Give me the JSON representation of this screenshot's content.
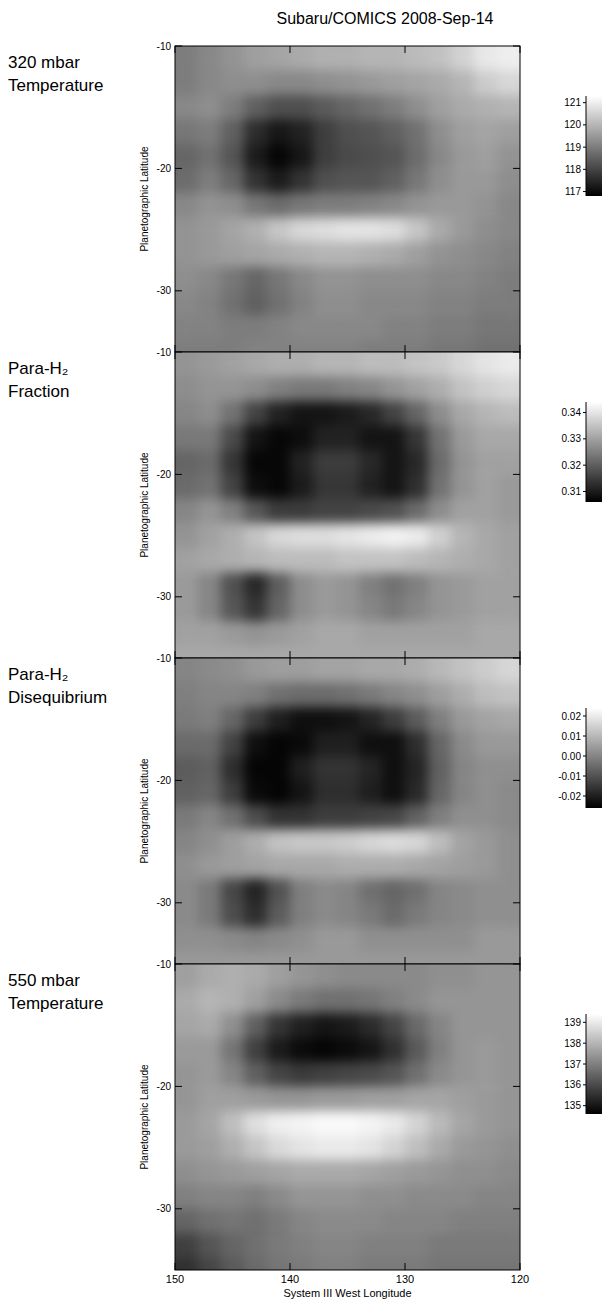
{
  "title": "Subaru/COMICS 2008-Sep-14",
  "chart_data": [
    {
      "type": "heatmap",
      "title": "320 mbar Temperature",
      "y_label": "Planetographic Latitude",
      "x": [
        149,
        147,
        145,
        143,
        141,
        139,
        137,
        135,
        133,
        131,
        129,
        127,
        125,
        123,
        121
      ],
      "y": [
        -11,
        -13,
        -15,
        -17,
        -19,
        -21,
        -23,
        -25,
        -27,
        -29,
        -31,
        -33,
        -35
      ],
      "values": [
        [
          119.0,
          119.2,
          119.4,
          119.6,
          119.7,
          119.8,
          119.9,
          119.9,
          120.0,
          120.0,
          120.1,
          120.2,
          120.5,
          120.9,
          121.0
        ],
        [
          119.0,
          119.2,
          119.3,
          119.3,
          119.2,
          119.2,
          119.3,
          119.4,
          119.5,
          119.6,
          119.7,
          119.8,
          120.0,
          120.4,
          120.6
        ],
        [
          119.2,
          119.3,
          119.0,
          118.5,
          118.2,
          118.2,
          118.4,
          118.6,
          118.8,
          119.0,
          119.3,
          119.6,
          119.8,
          119.9,
          120.0
        ],
        [
          118.9,
          119.0,
          118.5,
          117.6,
          117.2,
          117.4,
          117.9,
          118.2,
          118.3,
          118.5,
          118.8,
          119.3,
          119.6,
          119.7,
          119.6
        ],
        [
          118.6,
          118.8,
          118.3,
          117.3,
          116.9,
          117.2,
          117.9,
          118.1,
          118.2,
          118.3,
          118.7,
          119.2,
          119.5,
          119.6,
          119.4
        ],
        [
          118.7,
          119.0,
          118.6,
          117.7,
          117.3,
          117.7,
          118.2,
          118.3,
          118.3,
          118.5,
          118.9,
          119.3,
          119.5,
          119.5,
          119.3
        ],
        [
          119.2,
          119.4,
          119.3,
          118.9,
          118.7,
          118.9,
          119.0,
          119.0,
          119.1,
          119.2,
          119.4,
          119.5,
          119.5,
          119.4,
          119.2
        ],
        [
          119.4,
          119.5,
          119.7,
          119.9,
          120.3,
          120.6,
          120.7,
          120.8,
          120.8,
          120.7,
          120.3,
          119.8,
          119.5,
          119.3,
          119.2
        ],
        [
          119.4,
          119.5,
          119.6,
          119.7,
          119.8,
          119.9,
          120.0,
          120.0,
          119.9,
          119.8,
          119.6,
          119.4,
          119.3,
          119.2,
          119.1
        ],
        [
          119.3,
          119.2,
          118.9,
          118.6,
          118.9,
          119.2,
          119.4,
          119.4,
          119.3,
          119.3,
          119.3,
          119.2,
          119.2,
          119.1,
          119.0
        ],
        [
          119.2,
          119.1,
          118.8,
          118.5,
          118.8,
          119.1,
          119.3,
          119.3,
          119.2,
          119.2,
          119.2,
          119.1,
          119.1,
          119.0,
          119.0
        ],
        [
          119.1,
          119.1,
          119.0,
          119.0,
          119.1,
          119.2,
          119.2,
          119.2,
          119.2,
          119.1,
          119.1,
          119.0,
          119.0,
          118.9,
          118.9
        ],
        [
          119.0,
          119.0,
          119.0,
          119.1,
          119.1,
          119.1,
          119.1,
          119.1,
          119.0,
          119.0,
          119.0,
          118.9,
          118.9,
          118.8,
          118.8
        ]
      ],
      "xlim": [
        150,
        120
      ],
      "ylim": [
        -10,
        -35
      ],
      "xticks": [
        150,
        140,
        130,
        120
      ],
      "yticks": [
        -10,
        -20,
        -30
      ],
      "tick_labels": "y",
      "color_range": [
        116.8,
        121.3
      ],
      "color_ticks": [
        121,
        120,
        119,
        118,
        117
      ]
    },
    {
      "type": "heatmap",
      "title": "Para-H₂ Fraction",
      "y_label": "Planetographic Latitude",
      "x": [
        149,
        147,
        145,
        143,
        141,
        139,
        137,
        135,
        133,
        131,
        129,
        127,
        125,
        123,
        121
      ],
      "y": [
        -11,
        -13,
        -15,
        -17,
        -19,
        -21,
        -23,
        -25,
        -27,
        -29,
        -31,
        -33,
        -35
      ],
      "values": [
        [
          0.328,
          0.329,
          0.33,
          0.331,
          0.332,
          0.332,
          0.333,
          0.333,
          0.334,
          0.334,
          0.335,
          0.336,
          0.338,
          0.34,
          0.341
        ],
        [
          0.327,
          0.328,
          0.328,
          0.327,
          0.325,
          0.324,
          0.324,
          0.325,
          0.326,
          0.328,
          0.33,
          0.332,
          0.335,
          0.337,
          0.338
        ],
        [
          0.326,
          0.327,
          0.323,
          0.316,
          0.311,
          0.309,
          0.309,
          0.31,
          0.312,
          0.316,
          0.321,
          0.327,
          0.331,
          0.333,
          0.334
        ],
        [
          0.324,
          0.324,
          0.317,
          0.309,
          0.307,
          0.308,
          0.311,
          0.311,
          0.309,
          0.309,
          0.314,
          0.323,
          0.329,
          0.331,
          0.331
        ],
        [
          0.321,
          0.322,
          0.314,
          0.307,
          0.307,
          0.311,
          0.315,
          0.315,
          0.312,
          0.309,
          0.312,
          0.322,
          0.328,
          0.33,
          0.33
        ],
        [
          0.322,
          0.323,
          0.316,
          0.308,
          0.307,
          0.31,
          0.314,
          0.314,
          0.311,
          0.309,
          0.313,
          0.323,
          0.328,
          0.33,
          0.329
        ],
        [
          0.326,
          0.328,
          0.325,
          0.319,
          0.315,
          0.315,
          0.316,
          0.316,
          0.317,
          0.318,
          0.322,
          0.327,
          0.33,
          0.33,
          0.329
        ],
        [
          0.328,
          0.33,
          0.332,
          0.335,
          0.338,
          0.339,
          0.339,
          0.34,
          0.341,
          0.342,
          0.341,
          0.337,
          0.333,
          0.331,
          0.33
        ],
        [
          0.33,
          0.331,
          0.332,
          0.333,
          0.334,
          0.334,
          0.334,
          0.335,
          0.335,
          0.335,
          0.334,
          0.333,
          0.332,
          0.331,
          0.33
        ],
        [
          0.329,
          0.326,
          0.318,
          0.312,
          0.32,
          0.327,
          0.329,
          0.328,
          0.325,
          0.323,
          0.325,
          0.328,
          0.329,
          0.33,
          0.33
        ],
        [
          0.329,
          0.326,
          0.319,
          0.314,
          0.321,
          0.327,
          0.329,
          0.328,
          0.326,
          0.324,
          0.326,
          0.328,
          0.329,
          0.33,
          0.33
        ],
        [
          0.33,
          0.33,
          0.329,
          0.328,
          0.329,
          0.33,
          0.331,
          0.331,
          0.33,
          0.33,
          0.33,
          0.33,
          0.33,
          0.331,
          0.331
        ],
        [
          0.331,
          0.331,
          0.331,
          0.331,
          0.331,
          0.331,
          0.331,
          0.331,
          0.331,
          0.331,
          0.331,
          0.331,
          0.331,
          0.331,
          0.331
        ]
      ],
      "xlim": [
        150,
        120
      ],
      "ylim": [
        -10,
        -35
      ],
      "xticks": [
        150,
        140,
        130,
        120
      ],
      "yticks": [
        -10,
        -20,
        -30
      ],
      "tick_labels": "y",
      "color_range": [
        0.306,
        0.344
      ],
      "color_ticks": [
        0.34,
        0.33,
        0.32,
        0.31
      ]
    },
    {
      "type": "heatmap",
      "title": "Para-H₂ Disequibrium",
      "y_label": "Planetographic Latitude",
      "x": [
        149,
        147,
        145,
        143,
        141,
        139,
        137,
        135,
        133,
        131,
        129,
        127,
        125,
        123,
        121
      ],
      "y": [
        -11,
        -13,
        -15,
        -17,
        -19,
        -21,
        -23,
        -25,
        -27,
        -29,
        -31,
        -33,
        -35
      ],
      "values": [
        [
          0,
          0.001,
          0.002,
          0.004,
          0.005,
          0.005,
          0.006,
          0.006,
          0.007,
          0.007,
          0.008,
          0.01,
          0.012,
          0.014,
          0.016
        ],
        [
          -0.001,
          0,
          0,
          -0.001,
          -0.004,
          -0.005,
          -0.005,
          -0.004,
          -0.002,
          0,
          0.002,
          0.005,
          0.008,
          0.011,
          0.012
        ],
        [
          -0.002,
          -0.001,
          -0.006,
          -0.014,
          -0.02,
          -0.023,
          -0.023,
          -0.022,
          -0.019,
          -0.014,
          -0.008,
          -0.001,
          0.004,
          0.006,
          0.007
        ],
        [
          -0.005,
          -0.005,
          -0.013,
          -0.023,
          -0.025,
          -0.024,
          -0.02,
          -0.02,
          -0.023,
          -0.023,
          -0.017,
          -0.006,
          0.001,
          0.004,
          0.004
        ],
        [
          -0.008,
          -0.007,
          -0.017,
          -0.025,
          -0.025,
          -0.02,
          -0.016,
          -0.016,
          -0.019,
          -0.023,
          -0.019,
          -0.007,
          0,
          0.002,
          0.002
        ],
        [
          -0.007,
          -0.006,
          -0.014,
          -0.024,
          -0.025,
          -0.022,
          -0.017,
          -0.017,
          -0.02,
          -0.023,
          -0.018,
          -0.006,
          0,
          0.002,
          0.001
        ],
        [
          -0.002,
          0,
          -0.004,
          -0.011,
          -0.016,
          -0.016,
          -0.014,
          -0.014,
          -0.013,
          -0.012,
          -0.007,
          -0.001,
          0.002,
          0.002,
          0.001
        ],
        [
          0,
          0.002,
          0.005,
          0.008,
          0.012,
          0.013,
          0.013,
          0.014,
          0.016,
          0.017,
          0.016,
          0.011,
          0.006,
          0.004,
          0.002
        ],
        [
          0.002,
          0.004,
          0.005,
          0.006,
          0.007,
          0.007,
          0.007,
          0.008,
          0.008,
          0.008,
          0.007,
          0.006,
          0.005,
          0.004,
          0.002
        ],
        [
          0.001,
          -0.002,
          -0.012,
          -0.019,
          -0.01,
          -0.001,
          0.001,
          0,
          -0.004,
          -0.006,
          -0.004,
          0,
          0.001,
          0.002,
          0.002
        ],
        [
          0.001,
          -0.002,
          -0.011,
          -0.017,
          -0.008,
          -0.001,
          0.001,
          0,
          -0.002,
          -0.005,
          -0.002,
          0,
          0.001,
          0.002,
          0.002
        ],
        [
          0.002,
          0.002,
          0.001,
          0,
          0.001,
          0.002,
          0.004,
          0.004,
          0.002,
          0.002,
          0.002,
          0.002,
          0.002,
          0.004,
          0.004
        ],
        [
          0.004,
          0.004,
          0.004,
          0.004,
          0.004,
          0.004,
          0.004,
          0.004,
          0.004,
          0.004,
          0.004,
          0.004,
          0.004,
          0.004,
          0.004
        ]
      ],
      "xlim": [
        150,
        120
      ],
      "ylim": [
        -10,
        -35
      ],
      "xticks": [
        150,
        140,
        130,
        120
      ],
      "yticks": [
        -10,
        -20,
        -30
      ],
      "tick_labels": "y",
      "color_range": [
        -0.026,
        0.024
      ],
      "color_ticks": [
        0.02,
        0.01,
        {
          "value": 0,
          "label": "0.00"
        },
        -0.01,
        -0.02
      ]
    },
    {
      "type": "heatmap",
      "title": "550 mbar Temperature",
      "y_label": "Planetographic Latitude",
      "x_label": "System III West Longitude",
      "x": [
        149,
        147,
        145,
        143,
        141,
        139,
        137,
        135,
        133,
        131,
        129,
        127,
        125,
        123,
        121
      ],
      "y": [
        -11,
        -13,
        -15,
        -17,
        -19,
        -21,
        -23,
        -25,
        -27,
        -29,
        -31,
        -33,
        -35
      ],
      "values": [
        [
          137.6,
          137.8,
          137.9,
          137.8,
          137.6,
          137.4,
          137.3,
          137.2,
          137.2,
          137.2,
          137.2,
          137.3,
          137.3,
          137.4,
          137.4
        ],
        [
          137.8,
          138.0,
          137.9,
          137.6,
          137.2,
          136.9,
          136.7,
          136.7,
          136.8,
          137.0,
          137.2,
          137.4,
          137.4,
          137.4,
          137.4
        ],
        [
          137.7,
          137.8,
          137.3,
          136.4,
          135.6,
          135.2,
          135.0,
          135.1,
          135.4,
          135.9,
          136.6,
          137.1,
          137.4,
          137.4,
          137.4
        ],
        [
          137.5,
          137.5,
          136.8,
          135.8,
          135.1,
          134.8,
          134.7,
          134.8,
          135.0,
          135.5,
          136.3,
          137.0,
          137.4,
          137.5,
          137.4
        ],
        [
          137.4,
          137.5,
          137.1,
          136.4,
          135.9,
          135.7,
          135.8,
          135.9,
          136.0,
          136.2,
          136.7,
          137.2,
          137.4,
          137.5,
          137.4
        ],
        [
          137.4,
          137.6,
          137.6,
          137.5,
          137.4,
          137.4,
          137.5,
          137.5,
          137.6,
          137.6,
          137.7,
          137.7,
          137.6,
          137.5,
          137.4
        ],
        [
          137.5,
          137.7,
          138.2,
          138.8,
          139.1,
          139.2,
          139.3,
          139.3,
          139.2,
          139.0,
          138.6,
          138.1,
          137.7,
          137.5,
          137.4
        ],
        [
          137.5,
          137.6,
          137.9,
          138.3,
          138.7,
          138.9,
          139.0,
          139.0,
          138.9,
          138.6,
          138.2,
          137.8,
          137.5,
          137.4,
          137.3
        ],
        [
          137.3,
          137.4,
          137.5,
          137.6,
          137.7,
          137.8,
          137.8,
          137.8,
          137.7,
          137.6,
          137.5,
          137.4,
          137.3,
          137.3,
          137.2
        ],
        [
          137.0,
          137.1,
          137.1,
          137.0,
          137.2,
          137.4,
          137.4,
          137.4,
          137.3,
          137.3,
          137.2,
          137.2,
          137.2,
          137.1,
          137.1
        ],
        [
          136.5,
          136.7,
          136.8,
          136.7,
          136.9,
          137.1,
          137.2,
          137.2,
          137.2,
          137.1,
          137.1,
          137.1,
          137.0,
          137.0,
          137.0
        ],
        [
          135.8,
          136.2,
          136.5,
          136.7,
          136.9,
          137.0,
          137.1,
          137.1,
          137.0,
          137.0,
          137.0,
          136.9,
          136.9,
          136.9,
          136.9
        ],
        [
          135.5,
          135.9,
          136.3,
          136.6,
          136.8,
          136.9,
          137.0,
          137.0,
          136.9,
          136.9,
          136.9,
          136.8,
          136.8,
          136.8,
          136.8
        ]
      ],
      "xlim": [
        150,
        120
      ],
      "ylim": [
        -10,
        -35
      ],
      "xticks": [
        150,
        140,
        130,
        120
      ],
      "yticks": [
        -10,
        -20,
        -30
      ],
      "color_range": [
        134.6,
        139.4
      ],
      "color_ticks": [
        139,
        138,
        137,
        136,
        135
      ]
    }
  ]
}
